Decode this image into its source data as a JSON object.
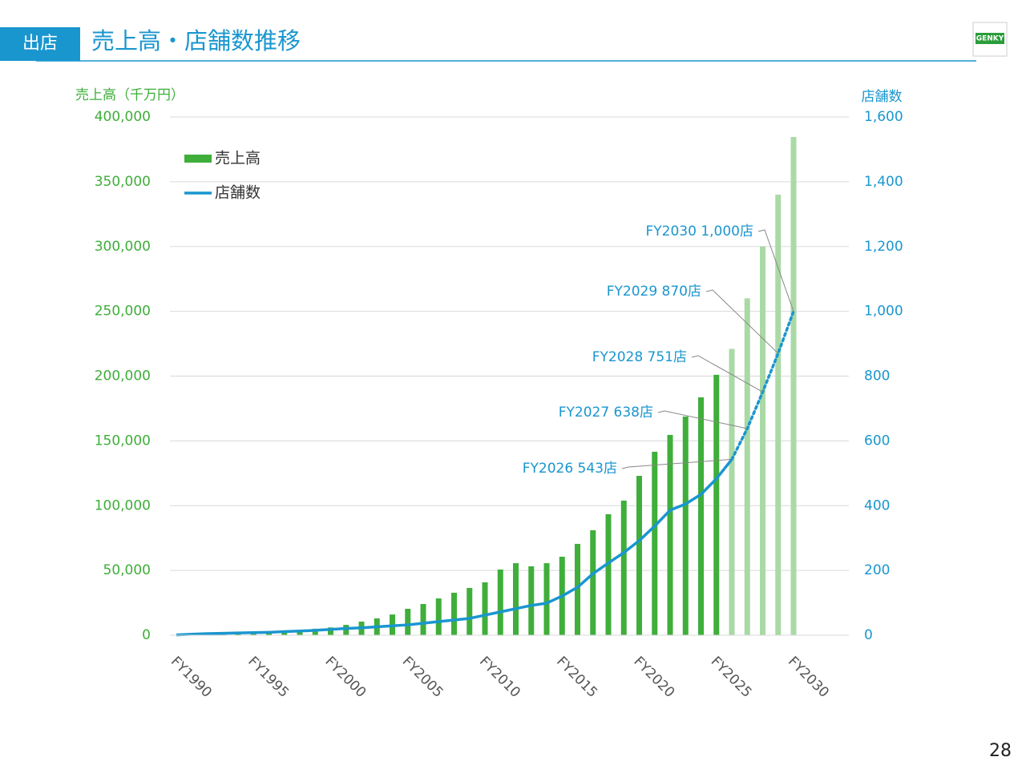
{
  "header": {
    "tab": "出店",
    "title": "売上高・店舗数推移",
    "logo": "GENKY"
  },
  "page_number": "28",
  "chart_data": {
    "type": "combo",
    "y_label": "売上高（千万円）",
    "y2_label": "店舗数",
    "categories": [
      "FY1990",
      null,
      null,
      null,
      null,
      "FY1995",
      null,
      null,
      null,
      null,
      "FY2000",
      null,
      null,
      null,
      null,
      "FY2005",
      null,
      null,
      null,
      null,
      "FY2010",
      null,
      null,
      null,
      null,
      "FY2015",
      null,
      null,
      null,
      null,
      "FY2020",
      null,
      null,
      null,
      null,
      "FY2025",
      null,
      null,
      null,
      null,
      "FY2030"
    ],
    "series": [
      {
        "name": "売上高",
        "type": "bar",
        "colors": [
          "#3fae3a",
          "#3fae3a",
          "#3fae3a",
          "#3fae3a",
          "#3fae3a",
          "#3fae3a",
          "#3fae3a",
          "#3fae3a",
          "#3fae3a",
          "#3fae3a",
          "#3fae3a",
          "#3fae3a",
          "#3fae3a",
          "#3fae3a",
          "#3fae3a",
          "#3fae3a",
          "#3fae3a",
          "#3fae3a",
          "#3fae3a",
          "#3fae3a",
          "#3fae3a",
          "#3fae3a",
          "#3fae3a",
          "#3fae3a",
          "#3fae3a",
          "#3fae3a",
          "#3fae3a",
          "#3fae3a",
          "#3fae3a",
          "#3fae3a",
          "#3fae3a",
          "#3fae3a",
          "#3fae3a",
          "#3fae3a",
          "#3fae3a",
          "#3fae3a",
          "#aad9a5",
          "#aad9a5",
          "#aad9a5",
          "#aad9a5",
          "#aad9a5"
        ],
        "values": [
          300,
          500,
          800,
          1000,
          1500,
          2000,
          2500,
          3000,
          4000,
          5000,
          6000,
          8000,
          10500,
          13000,
          16000,
          20400,
          24100,
          28400,
          32800,
          36500,
          40800,
          50700,
          55600,
          53200,
          55600,
          60600,
          70500,
          81000,
          93400,
          103900,
          123000,
          141600,
          154600,
          168800,
          183600,
          201000,
          221000,
          260000,
          300000,
          340000,
          384500
        ]
      },
      {
        "name": "店舗数",
        "type": "line",
        "axis": "y2",
        "color": "#1a96cf",
        "styles": [
          "solid",
          "solid",
          "solid",
          "solid",
          "solid",
          "solid",
          "solid",
          "solid",
          "solid",
          "solid",
          "solid",
          "solid",
          "solid",
          "solid",
          "solid",
          "solid",
          "solid",
          "solid",
          "solid",
          "solid",
          "solid",
          "solid",
          "solid",
          "solid",
          "solid",
          "solid",
          "solid",
          "solid",
          "solid",
          "solid",
          "solid",
          "solid",
          "solid",
          "solid",
          "solid",
          "solid",
          "solid",
          "dotted",
          "dotted",
          "dotted",
          "dotted"
        ],
        "values": [
          1,
          3,
          5,
          6,
          7,
          8,
          9,
          11,
          13,
          15,
          18,
          21,
          23,
          26,
          29,
          32,
          37,
          42,
          47,
          52,
          62,
          72,
          82,
          92,
          99,
          121,
          148,
          190,
          223,
          255,
          292,
          337,
          386,
          405,
          435,
          483,
          543,
          638,
          751,
          870,
          1000
        ],
        "value_labels": [
          null,
          null,
          null,
          null,
          null,
          null,
          null,
          null,
          null,
          null,
          null,
          null,
          null,
          null,
          null,
          null,
          null,
          null,
          null,
          null,
          null,
          null,
          null,
          null,
          null,
          null,
          null,
          null,
          null,
          null,
          null,
          null,
          null,
          null,
          null,
          null,
          "FY2026 543店",
          "FY2027 638店",
          "FY2028 751店",
          "FY2029 870店",
          "FY2030 1,000店"
        ]
      }
    ],
    "ylim": [
      0,
      400000
    ],
    "yticks": [
      0,
      {
        "value": 50000,
        "label": "50,000"
      },
      {
        "value": 100000,
        "label": "100,000"
      },
      {
        "value": 150000,
        "label": "150,000"
      },
      {
        "value": 200000,
        "label": "200,000"
      },
      {
        "value": 250000,
        "label": "250,000"
      },
      {
        "value": 300000,
        "label": "300,000"
      },
      {
        "value": 350000,
        "label": "350,000"
      },
      {
        "value": 400000,
        "label": "400,000"
      }
    ],
    "y2lim": [
      0,
      1600
    ],
    "y2ticks": [
      0,
      200,
      400,
      600,
      800,
      {
        "value": 1000,
        "label": "1,000"
      },
      {
        "value": 1200,
        "label": "1,200"
      },
      {
        "value": 1400,
        "label": "1,400"
      },
      {
        "value": 1600,
        "label": "1,600"
      }
    ],
    "grid": true,
    "legend": "upper left"
  }
}
